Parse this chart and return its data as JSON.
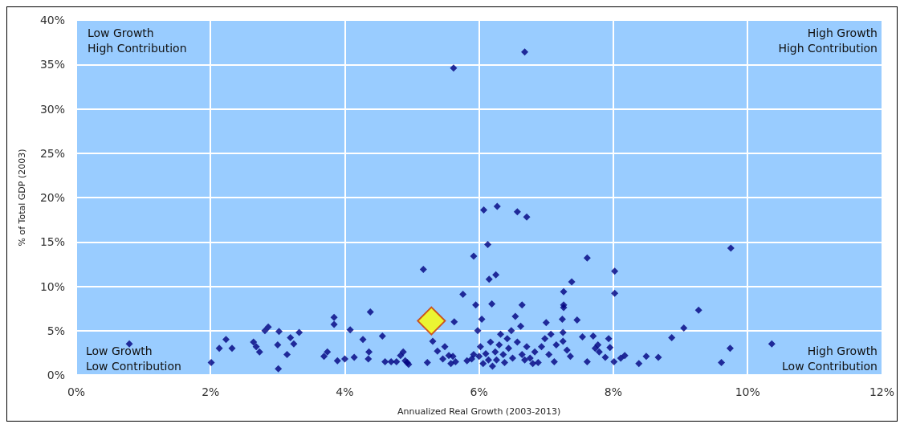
{
  "chart_data": {
    "type": "scatter",
    "xlabel": "Annualized Real Growth (2003-2013)",
    "ylabel": "% of Total GDP (2003)",
    "annotations": [
      "Low Growth\nHigh Contribution",
      "High Growth\nHigh Contribution",
      "Low Growth\nLow Contribution",
      "High Growth\nLow Contribution"
    ],
    "xlim": [
      0,
      12
    ],
    "xticks": [
      {
        "value": 0,
        "label": "0%"
      },
      {
        "value": 2,
        "label": "2%"
      },
      {
        "value": 4,
        "label": "4%"
      },
      {
        "value": 6,
        "label": "6%"
      },
      {
        "value": 8,
        "label": "8%"
      },
      {
        "value": 10,
        "label": "10%"
      },
      {
        "value": 12,
        "label": "12%"
      }
    ],
    "ylim": [
      0,
      40
    ],
    "yticks": [
      {
        "value": 0,
        "label": "0%"
      },
      {
        "value": 5,
        "label": "5%"
      },
      {
        "value": 10,
        "label": "10%"
      },
      {
        "value": 15,
        "label": "15%"
      },
      {
        "value": 20,
        "label": "20%"
      },
      {
        "value": 25,
        "label": "25%"
      },
      {
        "value": 30,
        "label": "30%"
      },
      {
        "value": 35,
        "label": "35%"
      },
      {
        "value": 40,
        "label": "40%"
      }
    ],
    "grid": true,
    "marker": "diamond",
    "series": [
      {
        "color": "#000080",
        "x": [
          0.79,
          2.01,
          2.13,
          2.23,
          2.32,
          2.64,
          2.68,
          2.73,
          2.81,
          2.86,
          3.02,
          3.0,
          3.01,
          3.14,
          3.19,
          3.24,
          3.32,
          3.69,
          3.74,
          3.84,
          3.84,
          3.89,
          4.0,
          4.08,
          4.14,
          4.27,
          4.35,
          4.36,
          4.38,
          4.56,
          4.6,
          4.69,
          4.77,
          4.83,
          4.87,
          4.9,
          4.93,
          4.95,
          5.23,
          5.17,
          5.31,
          5.38,
          5.49,
          5.46,
          5.55,
          5.62,
          5.63,
          5.61,
          5.65,
          5.58,
          5.76,
          5.82,
          5.89,
          5.92,
          5.92,
          5.95,
          6.07,
          6.13,
          6.15,
          6.25,
          6.19,
          6.27,
          6.57,
          6.71,
          6.64,
          6.68,
          7.26,
          7.38,
          7.61,
          7.26,
          8.02,
          8.02,
          9.75,
          7.26,
          9.27,
          7.24,
          7.46,
          9.05,
          7.25,
          7.54,
          7.7,
          7.93,
          8.87,
          7.25,
          7.31,
          7.36,
          7.77,
          7.73,
          7.79,
          7.95,
          7.88,
          7.61,
          8.01,
          8.11,
          8.17,
          8.38,
          8.49,
          8.67,
          9.61,
          9.74,
          10.36,
          5.98,
          6.04,
          6.0,
          6.02,
          6.06,
          6.1,
          6.14,
          6.17,
          6.2,
          6.24,
          6.26,
          6.3,
          6.32,
          6.36,
          6.38,
          6.42,
          6.44,
          6.48,
          6.5,
          6.54,
          6.57,
          6.62,
          6.64,
          6.68,
          6.71,
          6.76,
          6.8,
          6.83,
          6.88,
          6.93,
          6.98,
          7.0,
          7.04,
          7.07,
          7.12,
          7.15
        ],
        "values": [
          3.5,
          1.4,
          3.0,
          4.0,
          3.0,
          3.7,
          3.2,
          2.6,
          5.0,
          5.4,
          4.9,
          3.4,
          0.7,
          2.3,
          4.2,
          3.5,
          4.8,
          2.1,
          2.6,
          6.5,
          5.7,
          1.6,
          1.8,
          5.1,
          2.0,
          4.0,
          1.8,
          2.6,
          7.1,
          4.4,
          1.5,
          1.5,
          1.5,
          2.2,
          2.6,
          1.6,
          1.4,
          1.2,
          1.4,
          11.9,
          3.8,
          2.7,
          3.2,
          1.8,
          2.2,
          34.6,
          6.0,
          2.1,
          1.5,
          1.3,
          9.1,
          1.6,
          1.8,
          2.3,
          13.4,
          7.9,
          18.6,
          14.7,
          10.8,
          11.3,
          8.0,
          19.0,
          18.4,
          17.8,
          7.9,
          36.4,
          9.4,
          10.5,
          13.2,
          7.9,
          11.7,
          9.2,
          14.3,
          7.6,
          7.3,
          6.3,
          6.2,
          5.3,
          4.8,
          4.3,
          4.4,
          4.1,
          4.2,
          3.8,
          2.8,
          2.1,
          3.4,
          3.0,
          2.6,
          3.1,
          2.0,
          1.5,
          1.5,
          1.9,
          2.2,
          1.3,
          2.1,
          2.0,
          1.4,
          3.0,
          3.5,
          5.0,
          6.3,
          2.1,
          3.2,
          1.3,
          2.4,
          1.7,
          3.7,
          1.0,
          2.6,
          1.7,
          3.4,
          4.6,
          2.3,
          1.4,
          4.1,
          3.0,
          5.0,
          1.9,
          6.6,
          3.7,
          5.5,
          2.3,
          1.7,
          3.2,
          1.9,
          1.3,
          2.6,
          1.4,
          3.2,
          4.1,
          5.9,
          2.3,
          4.6,
          1.5,
          3.4
        ]
      },
      {
        "color": "#ffff00",
        "x": [
          5.29
        ],
        "values": [
          6.1
        ]
      }
    ]
  }
}
